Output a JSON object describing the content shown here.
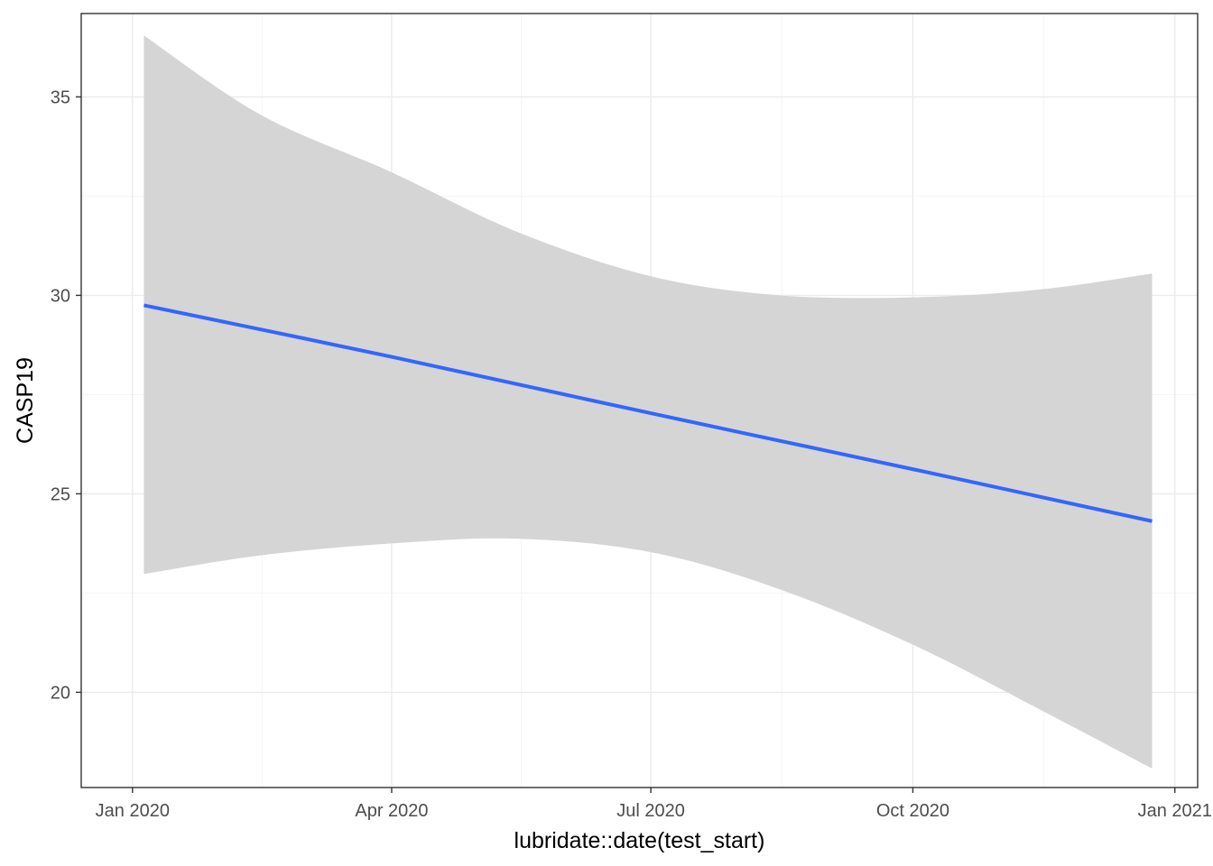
{
  "chart_data": {
    "type": "line",
    "title": "",
    "xlabel": "lubridate::date(test_start)",
    "ylabel": "CASP19",
    "x_axis": {
      "kind": "date",
      "xlim": [
        "2019-12-14",
        "2021-01-09"
      ],
      "ticks": [
        {
          "value": "2020-01-01",
          "label": "Jan 2020"
        },
        {
          "value": "2020-04-01",
          "label": "Apr 2020"
        },
        {
          "value": "2020-07-01",
          "label": "Jul 2020"
        },
        {
          "value": "2020-10-01",
          "label": "Oct 2020"
        },
        {
          "value": "2021-01-01",
          "label": "Jan 2021"
        }
      ]
    },
    "y_axis": {
      "ylim": [
        17.6,
        37.1
      ],
      "ticks": [
        20,
        25,
        30,
        35
      ]
    },
    "grid": true,
    "legend": "none",
    "colors": {
      "line": "#3366ff",
      "ribbon": "#d5d5d5",
      "grid_major": "#ebebeb",
      "grid_minor": "#f5f5f5",
      "border": "#333333"
    },
    "series": [
      {
        "type": "smooth_line",
        "x": [
          "2020-01-05",
          "2020-04-01",
          "2020-07-01",
          "2020-10-01",
          "2020-12-24"
        ],
        "y": [
          29.75,
          28.45,
          27.03,
          25.62,
          24.31
        ]
      },
      {
        "type": "confidence_ribbon",
        "x": [
          "2020-01-05",
          "2020-02-15",
          "2020-04-01",
          "2020-05-15",
          "2020-07-01",
          "2020-08-15",
          "2020-10-01",
          "2020-11-15",
          "2020-12-24"
        ],
        "lower": [
          22.98,
          23.45,
          23.75,
          23.87,
          23.53,
          22.6,
          21.2,
          19.55,
          18.08
        ],
        "upper": [
          36.55,
          34.55,
          33.1,
          31.6,
          30.48,
          30.0,
          29.95,
          30.15,
          30.55
        ]
      }
    ]
  }
}
